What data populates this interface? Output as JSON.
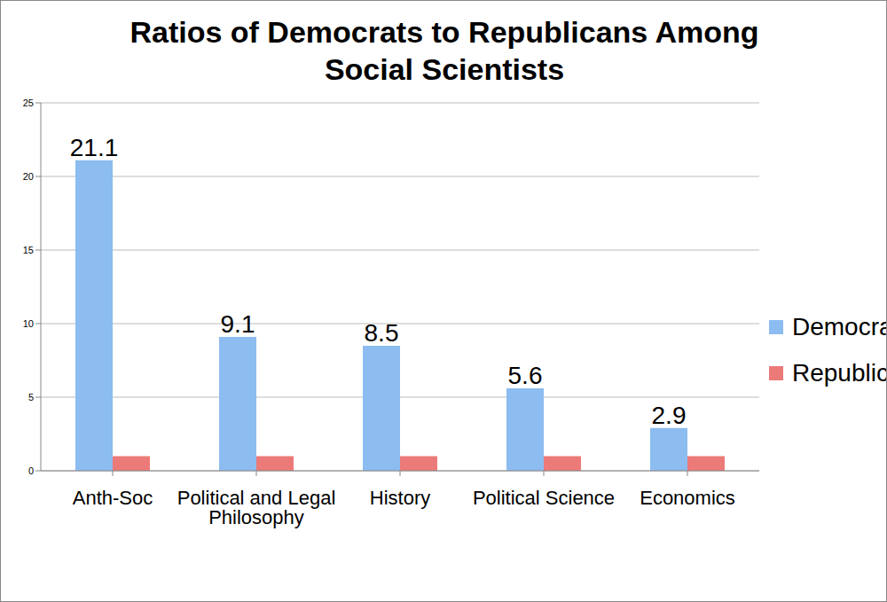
{
  "chart_data": {
    "type": "bar",
    "title": "Ratios of Democrats to Republicans Among Social Scientists",
    "categories": [
      "Anth-Soc",
      "Political and Legal Philosophy",
      "History",
      "Political Science",
      "Economics"
    ],
    "series": [
      {
        "name": "Democratic",
        "color": "#8cbcf0",
        "values": [
          21.1,
          9.1,
          8.5,
          5.6,
          2.9
        ],
        "data_labels": true
      },
      {
        "name": "Republican",
        "color": "#ec7a78",
        "values": [
          1,
          1,
          1,
          1,
          1
        ]
      }
    ],
    "ylim": [
      0,
      25
    ],
    "yticks": [
      0,
      5,
      10,
      15,
      20,
      25
    ],
    "grid": true,
    "legend": "right"
  }
}
